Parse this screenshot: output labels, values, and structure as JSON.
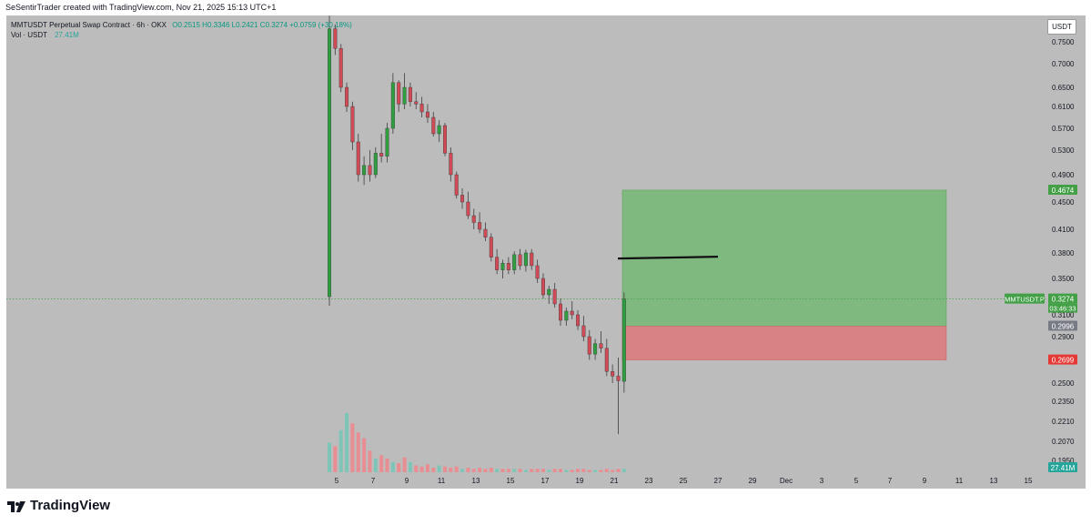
{
  "header": {
    "credit": "SeSentirTrader created with TradingView.com, Nov 21, 2025 15:13 UTC+1"
  },
  "legend": {
    "symbol_line": "MMTUSDT Perpetual Swap Contract · 6h · OKX",
    "ohlc": "O0.2515  H0.3346  L0.2421  C0.3274  +0.0759 (+30.18%)",
    "volume_label": "Vol · USDT",
    "volume_value": "27.41M"
  },
  "axis": {
    "unit_button": "USDT"
  },
  "logo": {
    "text": "TradingView"
  },
  "chart_data": {
    "type": "candlestick",
    "symbol": "MMTUSDT.P",
    "timeframe": "6h",
    "y_ticks": [
      "0.7500",
      "0.7000",
      "0.6500",
      "0.6100",
      "0.5700",
      "0.5300",
      "0.4900",
      "0.4500",
      "0.4100",
      "0.3800",
      "0.3500",
      "0.3100",
      "0.2900",
      "0.2500",
      "0.2350",
      "0.2210",
      "0.2070",
      "0.1950"
    ],
    "x_ticks": [
      "5",
      "7",
      "9",
      "11",
      "13",
      "15",
      "17",
      "19",
      "21",
      "23",
      "25",
      "27",
      "29",
      "Dec",
      "3",
      "5",
      "7",
      "9",
      "11",
      "13",
      "15"
    ],
    "price_labels": [
      {
        "text": "0.4674",
        "price": 0.4674,
        "color": "#43a047"
      },
      {
        "text": "0.3274",
        "price": 0.3274,
        "color": "#43a047",
        "tag": "MMTUSDT.P",
        "countdown": "03:46:33"
      },
      {
        "text": "0.2996",
        "price": 0.2996,
        "color": "#787b86"
      },
      {
        "text": "0.2699",
        "price": 0.2699,
        "color": "#e53935"
      },
      {
        "text": "27.41M",
        "price": null,
        "color": "#26a69a"
      }
    ],
    "long_position": {
      "entry": 0.2996,
      "target": 0.4674,
      "stop": 0.2699
    },
    "horizontal_line": {
      "price": 0.3745
    },
    "current_price": 0.3274,
    "candles": [
      {
        "o": 0.33,
        "h": 0.81,
        "l": 0.32,
        "c": 0.78
      },
      {
        "o": 0.78,
        "h": 0.79,
        "l": 0.72,
        "c": 0.735
      },
      {
        "o": 0.735,
        "h": 0.745,
        "l": 0.64,
        "c": 0.65
      },
      {
        "o": 0.65,
        "h": 0.66,
        "l": 0.6,
        "c": 0.61
      },
      {
        "o": 0.61,
        "h": 0.62,
        "l": 0.53,
        "c": 0.545
      },
      {
        "o": 0.545,
        "h": 0.56,
        "l": 0.48,
        "c": 0.49
      },
      {
        "o": 0.49,
        "h": 0.52,
        "l": 0.475,
        "c": 0.505
      },
      {
        "o": 0.505,
        "h": 0.53,
        "l": 0.48,
        "c": 0.49
      },
      {
        "o": 0.49,
        "h": 0.535,
        "l": 0.485,
        "c": 0.525
      },
      {
        "o": 0.525,
        "h": 0.56,
        "l": 0.51,
        "c": 0.52
      },
      {
        "o": 0.52,
        "h": 0.58,
        "l": 0.51,
        "c": 0.57
      },
      {
        "o": 0.57,
        "h": 0.68,
        "l": 0.56,
        "c": 0.66
      },
      {
        "o": 0.66,
        "h": 0.665,
        "l": 0.6,
        "c": 0.615
      },
      {
        "o": 0.615,
        "h": 0.68,
        "l": 0.605,
        "c": 0.65
      },
      {
        "o": 0.65,
        "h": 0.66,
        "l": 0.61,
        "c": 0.62
      },
      {
        "o": 0.62,
        "h": 0.64,
        "l": 0.605,
        "c": 0.615
      },
      {
        "o": 0.615,
        "h": 0.63,
        "l": 0.59,
        "c": 0.6
      },
      {
        "o": 0.6,
        "h": 0.615,
        "l": 0.58,
        "c": 0.59
      },
      {
        "o": 0.59,
        "h": 0.6,
        "l": 0.555,
        "c": 0.56
      },
      {
        "o": 0.56,
        "h": 0.585,
        "l": 0.545,
        "c": 0.575
      },
      {
        "o": 0.575,
        "h": 0.58,
        "l": 0.52,
        "c": 0.525
      },
      {
        "o": 0.525,
        "h": 0.535,
        "l": 0.48,
        "c": 0.49
      },
      {
        "o": 0.49,
        "h": 0.495,
        "l": 0.455,
        "c": 0.46
      },
      {
        "o": 0.46,
        "h": 0.47,
        "l": 0.44,
        "c": 0.45
      },
      {
        "o": 0.45,
        "h": 0.465,
        "l": 0.425,
        "c": 0.43
      },
      {
        "o": 0.43,
        "h": 0.44,
        "l": 0.41,
        "c": 0.42
      },
      {
        "o": 0.42,
        "h": 0.435,
        "l": 0.405,
        "c": 0.41
      },
      {
        "o": 0.41,
        "h": 0.42,
        "l": 0.395,
        "c": 0.4
      },
      {
        "o": 0.4,
        "h": 0.405,
        "l": 0.37,
        "c": 0.375
      },
      {
        "o": 0.375,
        "h": 0.385,
        "l": 0.355,
        "c": 0.36
      },
      {
        "o": 0.36,
        "h": 0.372,
        "l": 0.35,
        "c": 0.368
      },
      {
        "o": 0.368,
        "h": 0.375,
        "l": 0.355,
        "c": 0.36
      },
      {
        "o": 0.36,
        "h": 0.382,
        "l": 0.355,
        "c": 0.378
      },
      {
        "o": 0.378,
        "h": 0.385,
        "l": 0.36,
        "c": 0.365
      },
      {
        "o": 0.365,
        "h": 0.384,
        "l": 0.358,
        "c": 0.38
      },
      {
        "o": 0.38,
        "h": 0.385,
        "l": 0.36,
        "c": 0.365
      },
      {
        "o": 0.365,
        "h": 0.372,
        "l": 0.345,
        "c": 0.35
      },
      {
        "o": 0.35,
        "h": 0.356,
        "l": 0.328,
        "c": 0.332
      },
      {
        "o": 0.332,
        "h": 0.342,
        "l": 0.322,
        "c": 0.338
      },
      {
        "o": 0.338,
        "h": 0.345,
        "l": 0.318,
        "c": 0.322
      },
      {
        "o": 0.322,
        "h": 0.328,
        "l": 0.3,
        "c": 0.305
      },
      {
        "o": 0.305,
        "h": 0.318,
        "l": 0.3,
        "c": 0.314
      },
      {
        "o": 0.314,
        "h": 0.325,
        "l": 0.306,
        "c": 0.31
      },
      {
        "o": 0.31,
        "h": 0.315,
        "l": 0.296,
        "c": 0.3
      },
      {
        "o": 0.3,
        "h": 0.309,
        "l": 0.286,
        "c": 0.29
      },
      {
        "o": 0.29,
        "h": 0.296,
        "l": 0.27,
        "c": 0.275
      },
      {
        "o": 0.275,
        "h": 0.288,
        "l": 0.27,
        "c": 0.284
      },
      {
        "o": 0.284,
        "h": 0.295,
        "l": 0.276,
        "c": 0.28
      },
      {
        "o": 0.28,
        "h": 0.288,
        "l": 0.256,
        "c": 0.26
      },
      {
        "o": 0.26,
        "h": 0.266,
        "l": 0.25,
        "c": 0.256
      },
      {
        "o": 0.256,
        "h": 0.272,
        "l": 0.212,
        "c": 0.252
      },
      {
        "o": 0.2515,
        "h": 0.3346,
        "l": 0.2421,
        "c": 0.3274
      }
    ],
    "volume_max": 1.0,
    "volumes": [
      {
        "v": 0.26,
        "up": true
      },
      {
        "v": 0.23,
        "up": false
      },
      {
        "v": 0.37,
        "up": true
      },
      {
        "v": 0.52,
        "up": true
      },
      {
        "v": 0.43,
        "up": false
      },
      {
        "v": 0.35,
        "up": false
      },
      {
        "v": 0.3,
        "up": false
      },
      {
        "v": 0.19,
        "up": false
      },
      {
        "v": 0.12,
        "up": true
      },
      {
        "v": 0.15,
        "up": false
      },
      {
        "v": 0.12,
        "up": false
      },
      {
        "v": 0.09,
        "up": true
      },
      {
        "v": 0.08,
        "up": false
      },
      {
        "v": 0.13,
        "up": false
      },
      {
        "v": 0.09,
        "up": true
      },
      {
        "v": 0.06,
        "up": false
      },
      {
        "v": 0.05,
        "up": false
      },
      {
        "v": 0.07,
        "up": false
      },
      {
        "v": 0.04,
        "up": false
      },
      {
        "v": 0.06,
        "up": true
      },
      {
        "v": 0.05,
        "up": false
      },
      {
        "v": 0.04,
        "up": false
      },
      {
        "v": 0.05,
        "up": false
      },
      {
        "v": 0.03,
        "up": true
      },
      {
        "v": 0.04,
        "up": false
      },
      {
        "v": 0.03,
        "up": false
      },
      {
        "v": 0.04,
        "up": false
      },
      {
        "v": 0.03,
        "up": false
      },
      {
        "v": 0.04,
        "up": false
      },
      {
        "v": 0.03,
        "up": true
      },
      {
        "v": 0.03,
        "up": false
      },
      {
        "v": 0.03,
        "up": false
      },
      {
        "v": 0.03,
        "up": true
      },
      {
        "v": 0.03,
        "up": false
      },
      {
        "v": 0.02,
        "up": true
      },
      {
        "v": 0.03,
        "up": false
      },
      {
        "v": 0.03,
        "up": false
      },
      {
        "v": 0.03,
        "up": false
      },
      {
        "v": 0.02,
        "up": true
      },
      {
        "v": 0.03,
        "up": false
      },
      {
        "v": 0.03,
        "up": false
      },
      {
        "v": 0.02,
        "up": true
      },
      {
        "v": 0.02,
        "up": false
      },
      {
        "v": 0.03,
        "up": false
      },
      {
        "v": 0.03,
        "up": false
      },
      {
        "v": 0.02,
        "up": false
      },
      {
        "v": 0.02,
        "up": true
      },
      {
        "v": 0.02,
        "up": false
      },
      {
        "v": 0.03,
        "up": false
      },
      {
        "v": 0.02,
        "up": false
      },
      {
        "v": 0.03,
        "up": false
      },
      {
        "v": 0.03,
        "up": true
      }
    ],
    "colors": {
      "up": "#2e9e3e",
      "down": "#d14a55",
      "vol_up": "#7dc5b6",
      "vol_down": "#e88e93",
      "target_zone": "#7fb980",
      "stop_zone": "#d98283",
      "background": "#bcbcbc"
    }
  }
}
